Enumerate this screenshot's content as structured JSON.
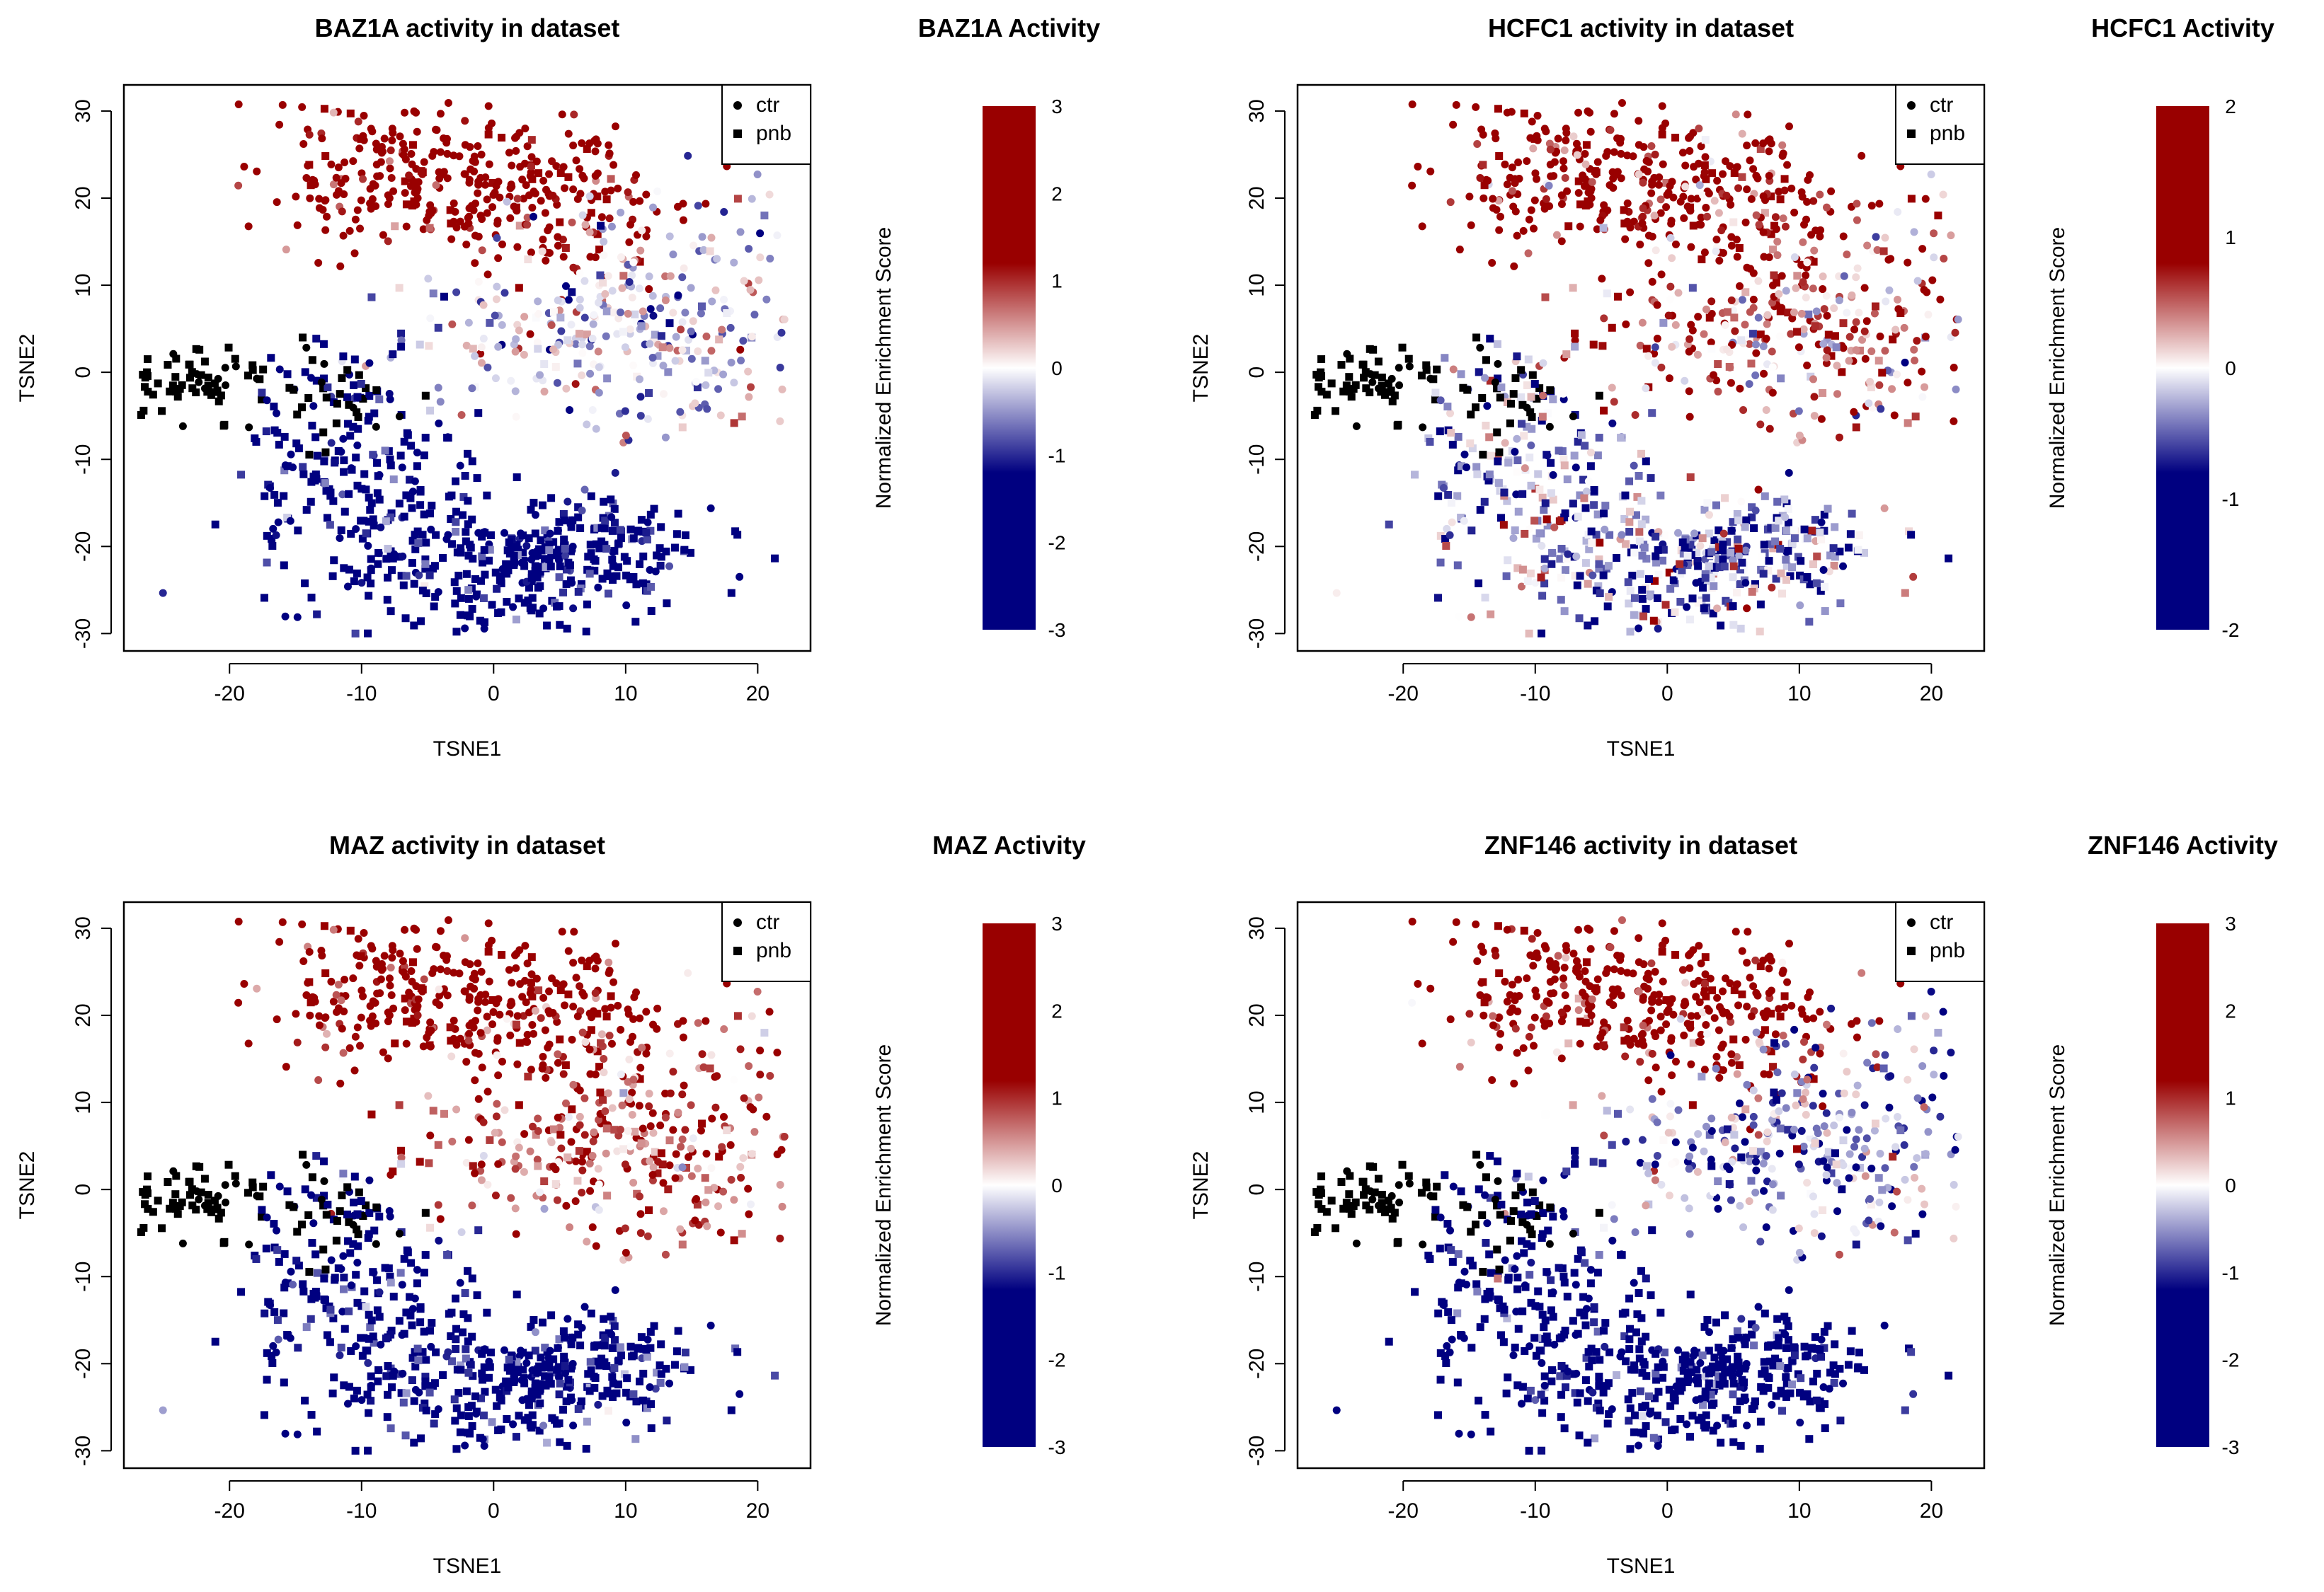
{
  "chart_data": [
    {
      "type": "scatter",
      "title": "BAZ1A activity in dataset",
      "xlabel": "TSNE1",
      "ylabel": "TSNE2",
      "xlim": [
        -28,
        24
      ],
      "ylim": [
        -32,
        33
      ],
      "x_ticks": [
        "-20",
        "-10",
        "0",
        "10",
        "20"
      ],
      "y_ticks": [
        "-30",
        "-20",
        "-10",
        "0",
        "10",
        "20",
        "30"
      ],
      "legend": {
        "position": "top-right",
        "entries": [
          {
            "label": "ctr",
            "marker": "circle"
          },
          {
            "label": "pnb",
            "marker": "square"
          }
        ]
      },
      "colorbar": {
        "title": "BAZ1A Activity",
        "label": "Normalized Enrichment Score",
        "range": [
          -3,
          3
        ],
        "ticks": [
          "3",
          "2",
          "1",
          "0",
          "-1",
          "-2",
          "-3"
        ],
        "colors": [
          "#000080",
          "#ffffff",
          "#990000"
        ]
      },
      "pattern": {
        "top": 0.95,
        "right": -0.1,
        "left_island": 0.6,
        "bottom": -0.95,
        "noise": 0.55
      },
      "series": [
        {
          "name": "ctr",
          "marker": "circle"
        },
        {
          "name": "pnb",
          "marker": "square"
        }
      ]
    },
    {
      "type": "scatter",
      "title": "HCFC1 activity in dataset",
      "xlabel": "TSNE1",
      "ylabel": "TSNE2",
      "xlim": [
        -28,
        24
      ],
      "ylim": [
        -32,
        33
      ],
      "x_ticks": [
        "-20",
        "-10",
        "0",
        "10",
        "20"
      ],
      "y_ticks": [
        "-30",
        "-20",
        "-10",
        "0",
        "10",
        "20",
        "30"
      ],
      "legend": {
        "position": "top-right",
        "entries": [
          {
            "label": "ctr",
            "marker": "circle"
          },
          {
            "label": "pnb",
            "marker": "square"
          }
        ]
      },
      "colorbar": {
        "title": "HCFC1 Activity",
        "label": "Normalized Enrichment Score",
        "range": [
          -2,
          2
        ],
        "ticks": [
          "2",
          "1",
          "0",
          "-1",
          "-2"
        ],
        "colors": [
          "#000080",
          "#ffffff",
          "#990000"
        ]
      },
      "pattern": {
        "top": 0.9,
        "right": 0.45,
        "left_island": -0.95,
        "bottom": -0.3,
        "noise": 0.75
      },
      "series": [
        {
          "name": "ctr",
          "marker": "circle"
        },
        {
          "name": "pnb",
          "marker": "square"
        }
      ]
    },
    {
      "type": "scatter",
      "title": "MAZ activity in dataset",
      "xlabel": "TSNE1",
      "ylabel": "TSNE2",
      "xlim": [
        -28,
        24
      ],
      "ylim": [
        -32,
        33
      ],
      "x_ticks": [
        "-20",
        "-10",
        "0",
        "10",
        "20"
      ],
      "y_ticks": [
        "-30",
        "-20",
        "-10",
        "0",
        "10",
        "20",
        "30"
      ],
      "legend": {
        "position": "top-right",
        "entries": [
          {
            "label": "ctr",
            "marker": "circle"
          },
          {
            "label": "pnb",
            "marker": "square"
          }
        ]
      },
      "colorbar": {
        "title": "MAZ Activity",
        "label": "Normalized Enrichment Score",
        "range": [
          -3,
          3
        ],
        "ticks": [
          "3",
          "2",
          "1",
          "0",
          "-1",
          "-2",
          "-3"
        ],
        "colors": [
          "#000080",
          "#ffffff",
          "#990000"
        ]
      },
      "pattern": {
        "top": 0.95,
        "right": 0.5,
        "left_island": -0.6,
        "bottom": -0.9,
        "noise": 0.55
      },
      "series": [
        {
          "name": "ctr",
          "marker": "circle"
        },
        {
          "name": "pnb",
          "marker": "square"
        }
      ]
    },
    {
      "type": "scatter",
      "title": "ZNF146 activity in dataset",
      "xlabel": "TSNE1",
      "ylabel": "TSNE2",
      "xlim": [
        -28,
        24
      ],
      "ylim": [
        -32,
        33
      ],
      "x_ticks": [
        "-20",
        "-10",
        "0",
        "10",
        "20"
      ],
      "y_ticks": [
        "-30",
        "-20",
        "-10",
        "0",
        "10",
        "20",
        "30"
      ],
      "legend": {
        "position": "top-right",
        "entries": [
          {
            "label": "ctr",
            "marker": "circle"
          },
          {
            "label": "pnb",
            "marker": "square"
          }
        ]
      },
      "colorbar": {
        "title": "ZNF146 Activity",
        "label": "Normalized Enrichment Score",
        "range": [
          -3,
          3
        ],
        "ticks": [
          "3",
          "2",
          "1",
          "0",
          "-1",
          "-2",
          "-3"
        ],
        "colors": [
          "#000080",
          "#ffffff",
          "#990000"
        ]
      },
      "pattern": {
        "top": 0.9,
        "right": -0.3,
        "left_island": 0.85,
        "bottom": -1.0,
        "noise": 0.6
      },
      "series": [
        {
          "name": "ctr",
          "marker": "circle"
        },
        {
          "name": "pnb",
          "marker": "square"
        }
      ]
    }
  ]
}
